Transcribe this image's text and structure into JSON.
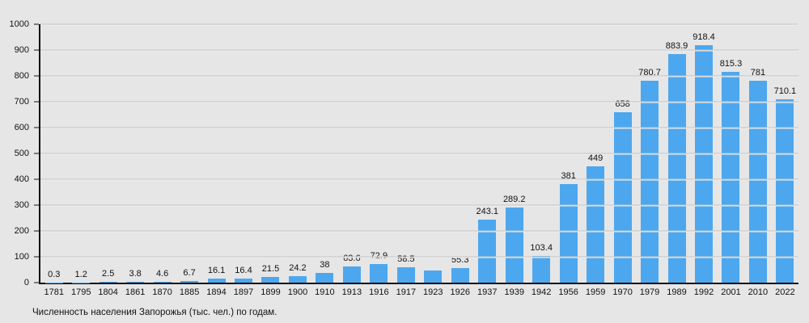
{
  "colors": {
    "background": "#e6e6e6",
    "bar": "#4da7ee",
    "gridline": "#c3c3c3",
    "axis": "#111111",
    "text": "#111111"
  },
  "chart_data": {
    "type": "bar",
    "title": "Численность населения Запорожья (тыс. чел.) по годам.",
    "xlabel": "",
    "ylabel": "",
    "ylim": [
      0,
      1000
    ],
    "yticks": [
      0,
      100,
      200,
      300,
      400,
      500,
      600,
      700,
      800,
      900,
      1000
    ],
    "ytick_labels": [
      "0",
      "100",
      "200",
      "300",
      "400",
      "500",
      "600",
      "700",
      "800",
      "900",
      "1000"
    ],
    "grid": true,
    "legend": "none",
    "categories": [
      "1781",
      "1795",
      "1804",
      "1861",
      "1870",
      "1885",
      "1894",
      "1897",
      "1899",
      "1900",
      "1910",
      "1913",
      "1916",
      "1917",
      "1923",
      "1926",
      "1937",
      "1939",
      "1942",
      "1956",
      "1959",
      "1970",
      "1979",
      "1989",
      "1992",
      "2001",
      "2010",
      "2022"
    ],
    "values": [
      0.3,
      1.2,
      2.5,
      3.8,
      4.6,
      6.7,
      16.1,
      16.4,
      21.5,
      24.2,
      38,
      63.6,
      72.9,
      58.5,
      47,
      55.3,
      243.1,
      289.2,
      103.4,
      381,
      449,
      658,
      780.7,
      883.9,
      918.4,
      815.3,
      781,
      710.1
    ],
    "bar_labels": [
      "0.3",
      "1.2",
      "2.5",
      "3.8",
      "4.6",
      "6.7",
      "16.1",
      "16.4",
      "21.5",
      "24.2",
      "38",
      "63.6",
      "72.9",
      "58.5",
      "",
      "55.3",
      "243.1",
      "289.2",
      "103.4",
      "381",
      "449",
      "658",
      "780.7",
      "883.9",
      "918.4",
      "815.3",
      "781",
      "710.1"
    ]
  }
}
